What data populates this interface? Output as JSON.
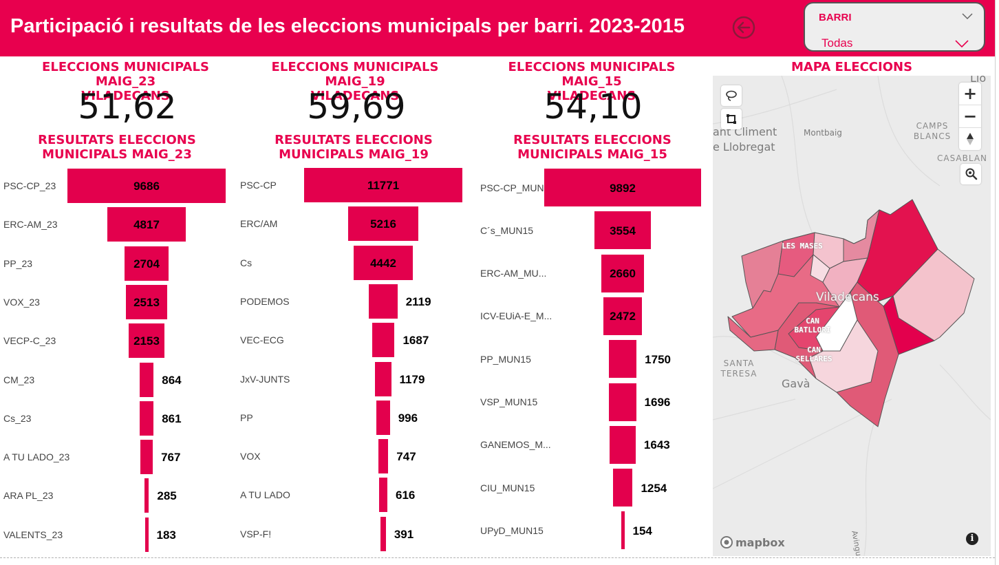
{
  "header": {
    "title": "Participació i resultats de les eleccions municipals per barri. 2023-2015"
  },
  "icons": {
    "back": "back-arrow-icon",
    "collapse": "chevron-down-icon",
    "dropdown": "chevron-down-icon",
    "info": "info-icon",
    "lasso": "lasso-select-icon",
    "rect_select": "rect-select-icon",
    "compass": "compass-icon",
    "zoom_search": "zoom-search-icon"
  },
  "filter": {
    "label": "BARRI",
    "value": "Todas"
  },
  "colors": {
    "accent": "#E8004E",
    "bar": "#E3004D"
  },
  "panels": [
    {
      "participation_title": "ELECCIONS MUNICIPALS MAIG_23",
      "participation_subtitle": "VILADECANS",
      "participation_value": "51,62",
      "results_title": "RESULTATS ELECCIONS MUNICIPALS MAIG_23",
      "chart_data": {
        "type": "bar",
        "categories": [
          "PSC-CP_23",
          "ERC-AM_23",
          "PP_23",
          "VOX_23",
          "VECP-C_23",
          "CM_23",
          "Cs_23",
          "A TU LADO_23",
          "ARA PL_23",
          "VALENTS_23"
        ],
        "values": [
          9686,
          4817,
          2704,
          2513,
          2153,
          864,
          861,
          767,
          285,
          183
        ]
      }
    },
    {
      "participation_title": "ELECCIONS MUNICIPALS MAIG_19",
      "participation_subtitle": "VILADECANS",
      "participation_value": "59,69",
      "results_title": "RESULTATS ELECCIONS MUNICIPALS MAIG_19",
      "chart_data": {
        "type": "bar",
        "categories": [
          "PSC-CP",
          "ERC/AM",
          "Cs",
          "PODEMOS",
          "VEC-ECG",
          "JxV-JUNTS",
          "PP",
          "VOX",
          "A TU LADO",
          "VSP-F!"
        ],
        "values": [
          11771,
          5216,
          4442,
          2119,
          1687,
          1179,
          996,
          747,
          616,
          391
        ]
      }
    },
    {
      "participation_title": "ELECCIONS MUNICIPALS MAIG_15",
      "participation_subtitle": "VILADECANS",
      "participation_value": "54,10",
      "results_title": "RESULTATS ELECCIONS MUNICIPALS MAIG_15",
      "chart_data": {
        "type": "bar",
        "categories": [
          "PSC-CP_MUN...",
          "C´s_MUN15",
          "ERC-AM_MU...",
          "ICV-EUiA-E_M...",
          "PP_MUN15",
          "VSP_MUN15",
          "GANEMOS_M...",
          "CIU_MUN15",
          "UPyD_MUN15"
        ],
        "values": [
          9892,
          3554,
          2660,
          2472,
          1750,
          1696,
          1643,
          1254,
          154
        ]
      }
    }
  ],
  "map": {
    "title": "MAPA ELECCIONS",
    "places": {
      "sant_climent": "ant Climent",
      "llobregat": "e Llobregat",
      "montbaig": "Montbaig",
      "camps_blancs": "CAMPS BLANCS",
      "casablanca": "CASABLAN",
      "lto": "Llo",
      "santa_teresa": "SANTA TERESA",
      "gava": "Gavà",
      "viladecans": "Viladecans",
      "avinguda": "Avingu"
    },
    "barri_labels": {
      "les_mases": "LES MASES",
      "can_batllori": "CAN BATLLORI",
      "can_sellares": "CAN SELLARES"
    },
    "zoom_in": "+",
    "zoom_out": "−",
    "attribution": "mapbox"
  }
}
